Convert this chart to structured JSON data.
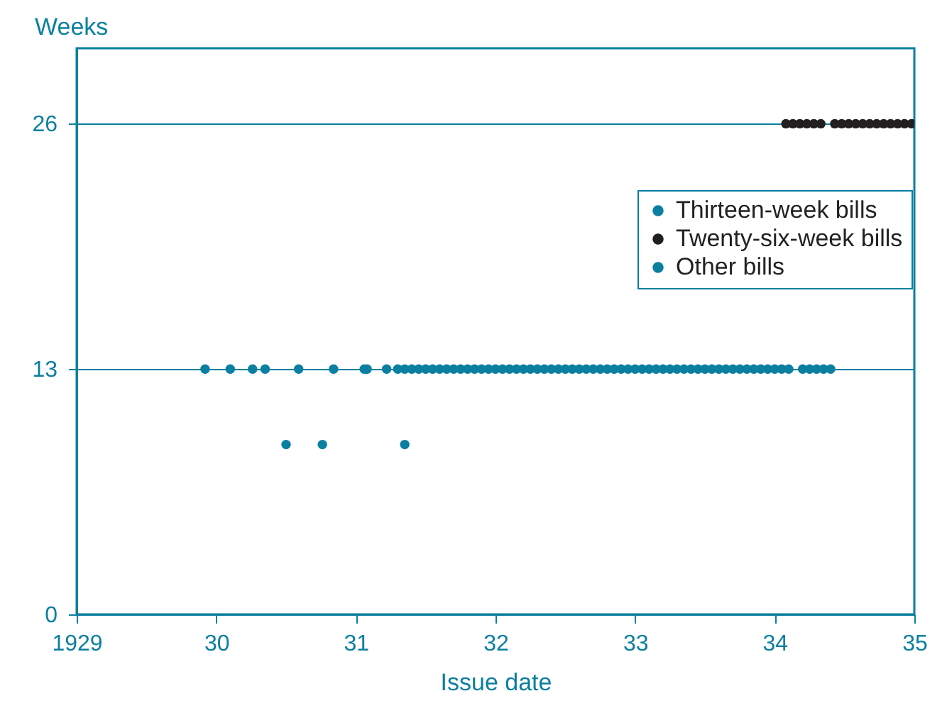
{
  "chart_data": {
    "type": "scatter",
    "xlabel": "Issue date",
    "ylabel": "Weeks",
    "xlim": [
      1929,
      1935
    ],
    "xticks": [
      1929,
      {
        "value": 1930,
        "label": "30"
      },
      {
        "value": 1931,
        "label": "31"
      },
      {
        "value": 1932,
        "label": "32"
      },
      {
        "value": 1933,
        "label": "33"
      },
      {
        "value": 1934,
        "label": "34"
      },
      {
        "value": 1935,
        "label": "35"
      }
    ],
    "ylim": [
      0,
      30
    ],
    "yticks": [
      0,
      13,
      26
    ],
    "grid": "y",
    "legend": "top right",
    "marker": "circle",
    "series": [
      {
        "name": "Thirteen-week bills",
        "color": "#0a7fa0",
        "x": [
          1929.92,
          1930.1,
          1930.26,
          1930.35,
          1930.59,
          1930.84,
          1931.06,
          1931.08,
          1931.22,
          1931.3,
          1931.35,
          1931.4,
          1931.45,
          1931.5,
          1931.55,
          1931.6,
          1931.65,
          1931.7,
          1931.75,
          1931.8,
          1931.85,
          1931.9,
          1931.95,
          1932.0,
          1932.05,
          1932.1,
          1932.15,
          1932.2,
          1932.25,
          1932.3,
          1932.35,
          1932.4,
          1932.45,
          1932.5,
          1932.55,
          1932.6,
          1932.65,
          1932.7,
          1932.75,
          1932.8,
          1932.85,
          1932.9,
          1932.95,
          1933.0,
          1933.05,
          1933.1,
          1933.15,
          1933.2,
          1933.25,
          1933.3,
          1933.35,
          1933.4,
          1933.45,
          1933.5,
          1933.55,
          1933.6,
          1933.65,
          1933.7,
          1933.75,
          1933.8,
          1933.85,
          1933.9,
          1933.95,
          1934.0,
          1934.05,
          1934.1,
          1934.2,
          1934.25,
          1934.3,
          1934.35,
          1934.4
        ],
        "values": [
          13,
          13,
          13,
          13,
          13,
          13,
          13,
          13,
          13,
          13,
          13,
          13,
          13,
          13,
          13,
          13,
          13,
          13,
          13,
          13,
          13,
          13,
          13,
          13,
          13,
          13,
          13,
          13,
          13,
          13,
          13,
          13,
          13,
          13,
          13,
          13,
          13,
          13,
          13,
          13,
          13,
          13,
          13,
          13,
          13,
          13,
          13,
          13,
          13,
          13,
          13,
          13,
          13,
          13,
          13,
          13,
          13,
          13,
          13,
          13,
          13,
          13,
          13,
          13,
          13,
          13,
          13,
          13,
          13,
          13,
          13
        ]
      },
      {
        "name": "Twenty-six-week bills",
        "color": "#231f20",
        "x": [
          1934.08,
          1934.13,
          1934.18,
          1934.23,
          1934.28,
          1934.33,
          1934.43,
          1934.48,
          1934.53,
          1934.58,
          1934.63,
          1934.68,
          1934.73,
          1934.78,
          1934.83,
          1934.88,
          1934.93,
          1934.98
        ],
        "values": [
          26,
          26,
          26,
          26,
          26,
          26,
          26,
          26,
          26,
          26,
          26,
          26,
          26,
          26,
          26,
          26,
          26,
          26
        ]
      },
      {
        "name": "Other bills",
        "color": "#0a7fa0",
        "x": [
          1930.5,
          1930.76,
          1931.35
        ],
        "values": [
          9,
          9,
          9
        ]
      }
    ]
  }
}
